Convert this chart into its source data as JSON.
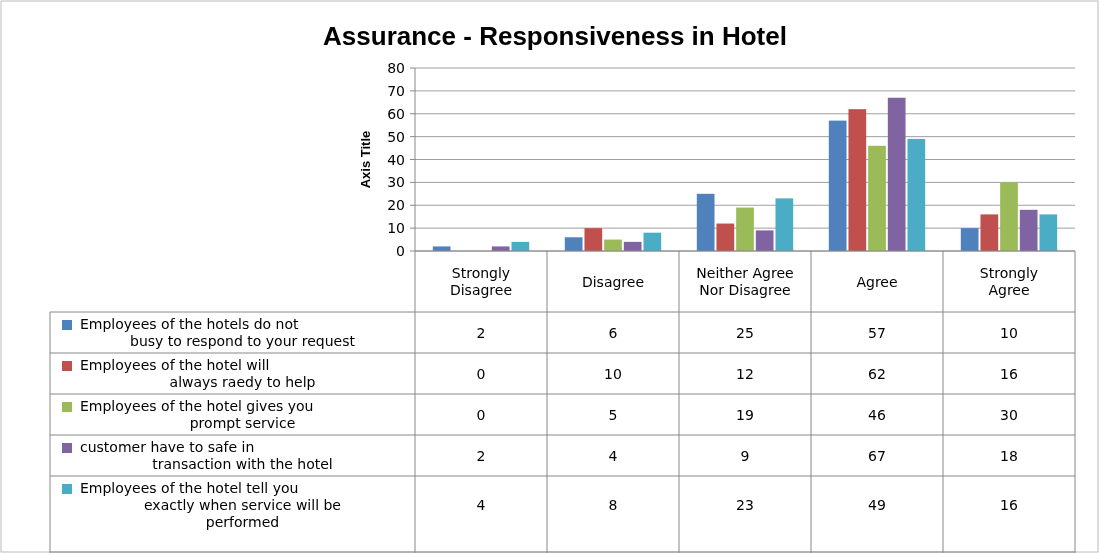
{
  "chart_data": {
    "type": "bar",
    "title": "Assurance - Responsiveness in Hotel",
    "ylabel": "Axis Title",
    "categories": [
      "Strongly Disagree",
      "Disagree",
      "Neither Agree Nor Disagree",
      "Agree",
      "Strongly Agree"
    ],
    "series": [
      {
        "name": "Employees of the hotels do not busy to respond to your request",
        "color": "#4f81bd",
        "values": [
          2,
          6,
          25,
          57,
          10
        ]
      },
      {
        "name": "Employees of the hotel will always raedy to help",
        "color": "#c0504d",
        "values": [
          0,
          10,
          12,
          62,
          16
        ]
      },
      {
        "name": "Employees of the hotel gives you prompt service",
        "color": "#9bbb59",
        "values": [
          0,
          5,
          19,
          46,
          30
        ]
      },
      {
        "name": "customer have to safe in transaction with the hotel",
        "color": "#8064a2",
        "values": [
          2,
          4,
          9,
          67,
          18
        ]
      },
      {
        "name": "Employees of the hotel tell you exactly when service will be performed",
        "color": "#4bacc6",
        "values": [
          4,
          8,
          23,
          49,
          16
        ]
      }
    ],
    "ylim": [
      0,
      80
    ],
    "yticks": [
      0,
      10,
      20,
      30,
      40,
      50,
      60,
      70,
      80
    ],
    "grid": "y",
    "legend": "left",
    "data_labels": true
  }
}
